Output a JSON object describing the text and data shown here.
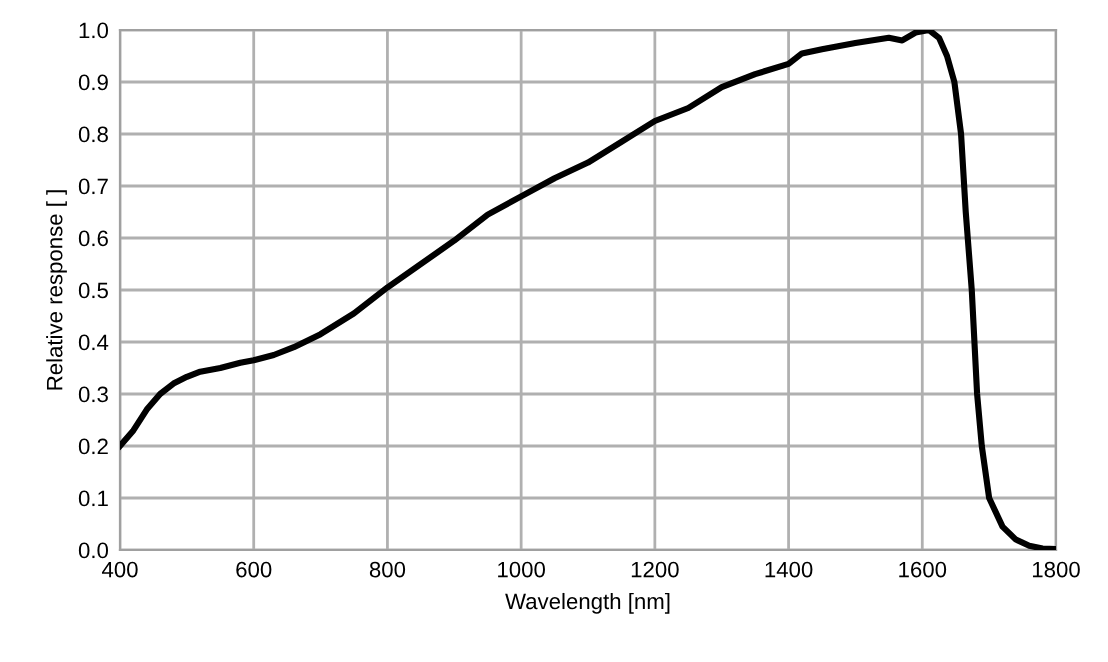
{
  "chart_data": {
    "type": "line",
    "xlabel": "Wavelength [nm]",
    "ylabel": "Relative response [ ]",
    "series": [
      {
        "color": "#000000",
        "x": [
          400,
          420,
          440,
          460,
          480,
          500,
          520,
          550,
          580,
          600,
          630,
          660,
          700,
          750,
          800,
          850,
          900,
          950,
          1000,
          1050,
          1100,
          1150,
          1200,
          1250,
          1300,
          1350,
          1400,
          1420,
          1450,
          1500,
          1550,
          1570,
          1590,
          1610,
          1625,
          1637,
          1648,
          1658,
          1665,
          1674,
          1682,
          1689,
          1700,
          1720,
          1740,
          1760,
          1780,
          1800
        ],
        "values": [
          0.2,
          0.23,
          0.27,
          0.3,
          0.32,
          0.333,
          0.343,
          0.35,
          0.36,
          0.365,
          0.375,
          0.39,
          0.415,
          0.455,
          0.505,
          0.55,
          0.595,
          0.645,
          0.68,
          0.715,
          0.745,
          0.785,
          0.825,
          0.85,
          0.89,
          0.915,
          0.935,
          0.955,
          0.963,
          0.975,
          0.985,
          0.98,
          0.995,
          1.0,
          0.985,
          0.95,
          0.9,
          0.8,
          0.65,
          0.5,
          0.3,
          0.2,
          0.1,
          0.045,
          0.02,
          0.008,
          0.003,
          0.002
        ]
      }
    ],
    "xlim": [
      400,
      1800
    ],
    "xticks": [
      400,
      600,
      800,
      1000,
      1200,
      1400,
      1600,
      1800
    ],
    "ylim": [
      0,
      1
    ],
    "yticks": [
      {
        "value": 0,
        "label": "0.0"
      },
      0.1,
      0.2,
      0.3,
      0.4,
      0.5,
      0.6,
      0.7,
      0.8,
      0.9,
      {
        "value": 1,
        "label": "1.0"
      }
    ],
    "grid": true,
    "marker": "none",
    "line_style": "solid"
  }
}
